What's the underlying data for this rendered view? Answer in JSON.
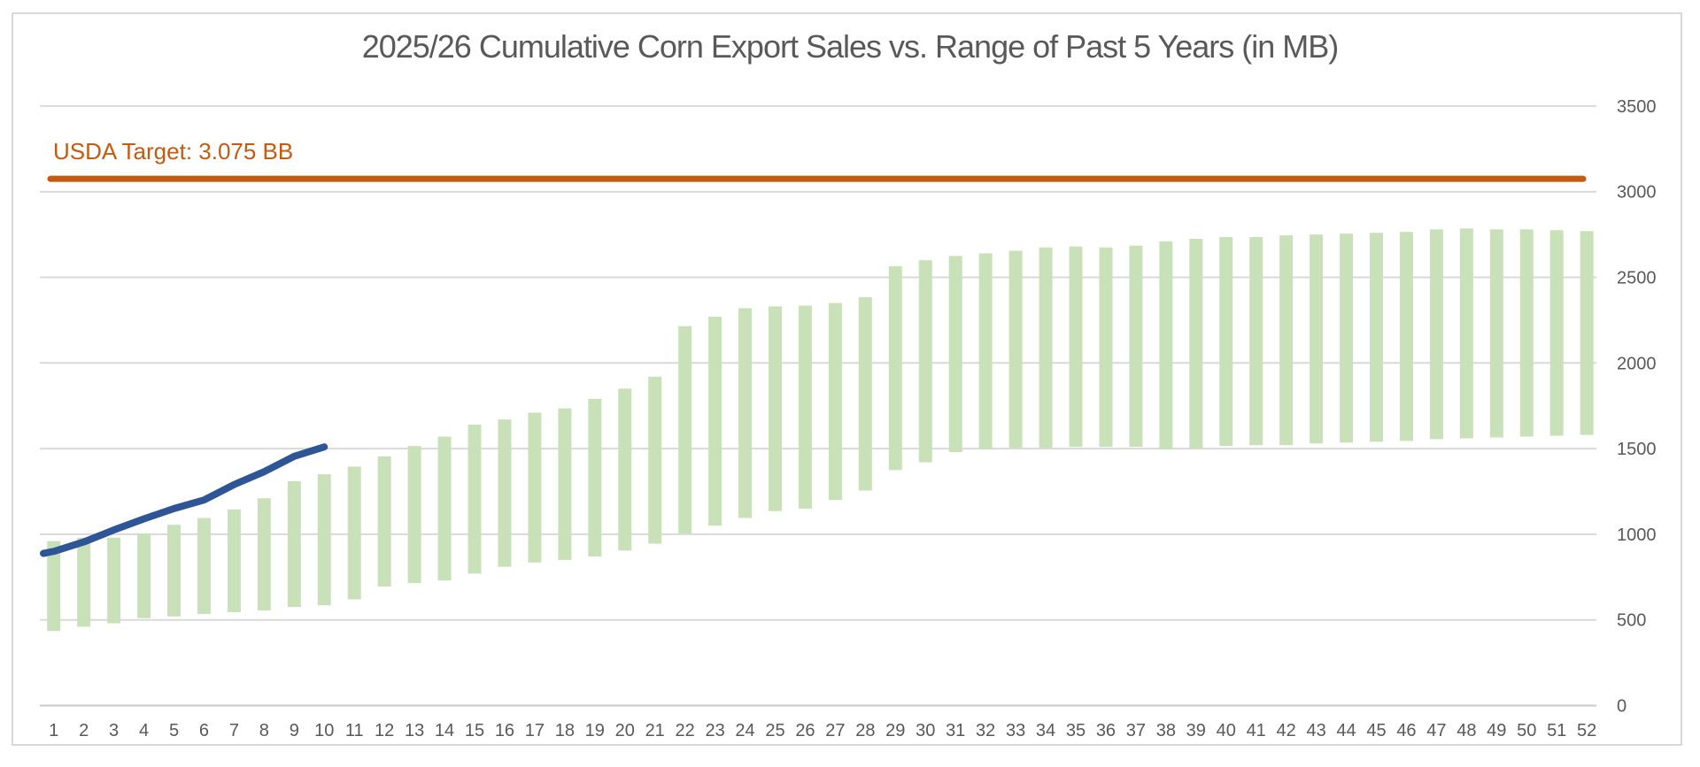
{
  "chart_data": {
    "type": "bar",
    "subtype": "floating-range-bars-with-line-overlay",
    "title": "2025/26 Cumulative Corn Export Sales vs. Range of Past 5 Years (in MB)",
    "target_annotation": {
      "label": "USDA Target: 3.075 BB",
      "value_mb": 3075
    },
    "xlabel": "",
    "ylabel": "",
    "grid": true,
    "legend_position": "none",
    "y_axis": {
      "min": 0,
      "max": 3500,
      "step": 500,
      "tick_labels": [
        "3500",
        "3000",
        "2500",
        "2000",
        "1500",
        "1000",
        "500",
        "0"
      ],
      "tick_values": [
        3500,
        3000,
        2500,
        2000,
        1500,
        1000,
        500,
        0
      ],
      "side": "right"
    },
    "categories": [
      "1",
      "2",
      "3",
      "4",
      "5",
      "6",
      "7",
      "8",
      "9",
      "10",
      "11",
      "12",
      "13",
      "14",
      "15",
      "16",
      "17",
      "18",
      "19",
      "20",
      "21",
      "22",
      "23",
      "24",
      "25",
      "26",
      "27",
      "28",
      "29",
      "30",
      "31",
      "32",
      "33",
      "34",
      "35",
      "36",
      "37",
      "38",
      "39",
      "40",
      "41",
      "42",
      "43",
      "44",
      "45",
      "46",
      "47",
      "48",
      "49",
      "50",
      "51",
      "52"
    ],
    "series": [
      {
        "name": "past-5-year-range",
        "type": "range-bar",
        "min": [
          435,
          460,
          480,
          510,
          520,
          535,
          545,
          555,
          575,
          585,
          620,
          695,
          715,
          730,
          770,
          810,
          835,
          850,
          870,
          905,
          945,
          1005,
          1050,
          1095,
          1135,
          1150,
          1200,
          1255,
          1375,
          1420,
          1480,
          1495,
          1505,
          1505,
          1510,
          1510,
          1510,
          1495,
          1500,
          1515,
          1520,
          1520,
          1530,
          1535,
          1540,
          1545,
          1555,
          1560,
          1565,
          1570,
          1575,
          1580
        ],
        "max": [
          960,
          980,
          980,
          1005,
          1055,
          1095,
          1145,
          1210,
          1310,
          1350,
          1395,
          1455,
          1515,
          1570,
          1640,
          1670,
          1710,
          1735,
          1790,
          1850,
          1920,
          2215,
          2270,
          2320,
          2330,
          2335,
          2350,
          2385,
          2565,
          2600,
          2625,
          2640,
          2655,
          2675,
          2680,
          2675,
          2685,
          2710,
          2725,
          2735,
          2735,
          2745,
          2750,
          2755,
          2760,
          2765,
          2780,
          2785,
          2780,
          2780,
          2775,
          2770
        ]
      },
      {
        "name": "2025/26 cumulative sales",
        "type": "line",
        "x": [
          1,
          2,
          3,
          4,
          5,
          6,
          7,
          8,
          9,
          10
        ],
        "values": [
          900,
          955,
          1025,
          1090,
          1150,
          1200,
          1290,
          1365,
          1455,
          1510
        ]
      }
    ]
  },
  "colors": {
    "bar_fill": "#c9e1b8",
    "line_stroke": "#2e5596",
    "target_stroke": "#c55a11",
    "target_text": "#c55a11",
    "gridline": "#d9d9d9",
    "axis_line": "#c9c9c9",
    "tick_text": "#595959",
    "title_text": "#595959",
    "border": "#d9d9d9",
    "background": "#ffffff"
  }
}
